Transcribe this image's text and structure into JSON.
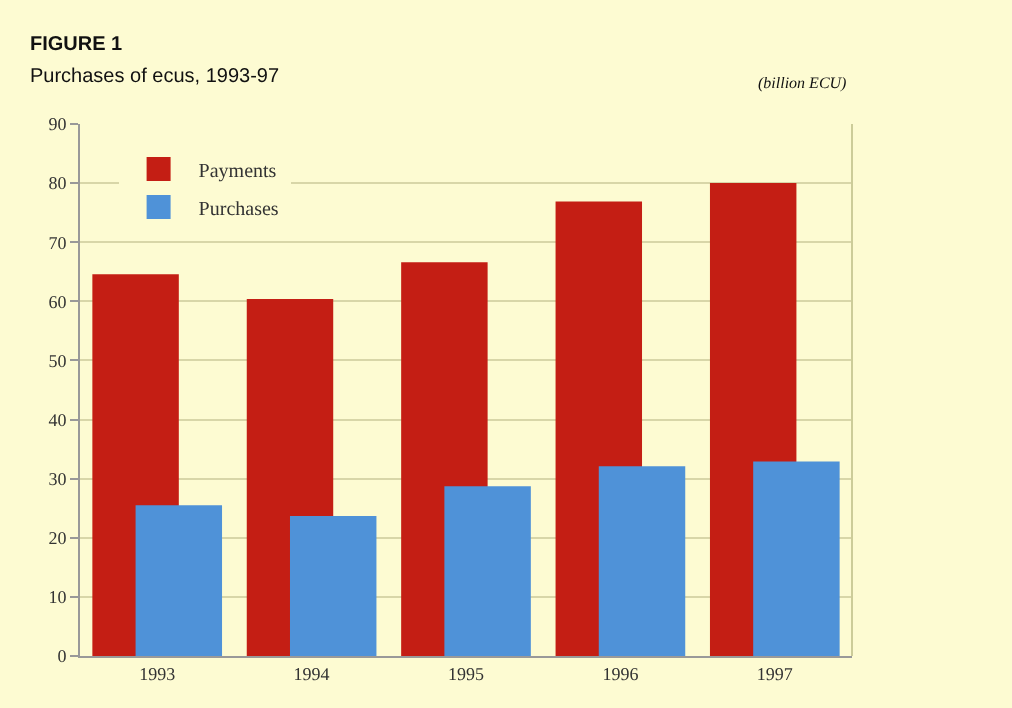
{
  "chart_data": {
    "type": "bar",
    "title": "FIGURE 1",
    "subtitle": "Purchases of ecus, 1993-97",
    "annotations": [
      "(billion ECU)"
    ],
    "categories": [
      "1993",
      "1994",
      "1995",
      "1996",
      "1997"
    ],
    "series": [
      {
        "name": "Payments",
        "color": "#c41e14",
        "values": [
          64.6,
          60.4,
          66.6,
          76.9,
          80.0
        ]
      },
      {
        "name": "Purchases",
        "color": "#4f92d8",
        "values": [
          25.5,
          23.7,
          28.7,
          32.1,
          32.9
        ]
      }
    ],
    "ylim": [
      0,
      90
    ],
    "yticks": [
      0,
      10,
      20,
      30,
      40,
      50,
      60,
      70,
      80,
      90
    ],
    "grid": "y",
    "legend": "top left"
  }
}
